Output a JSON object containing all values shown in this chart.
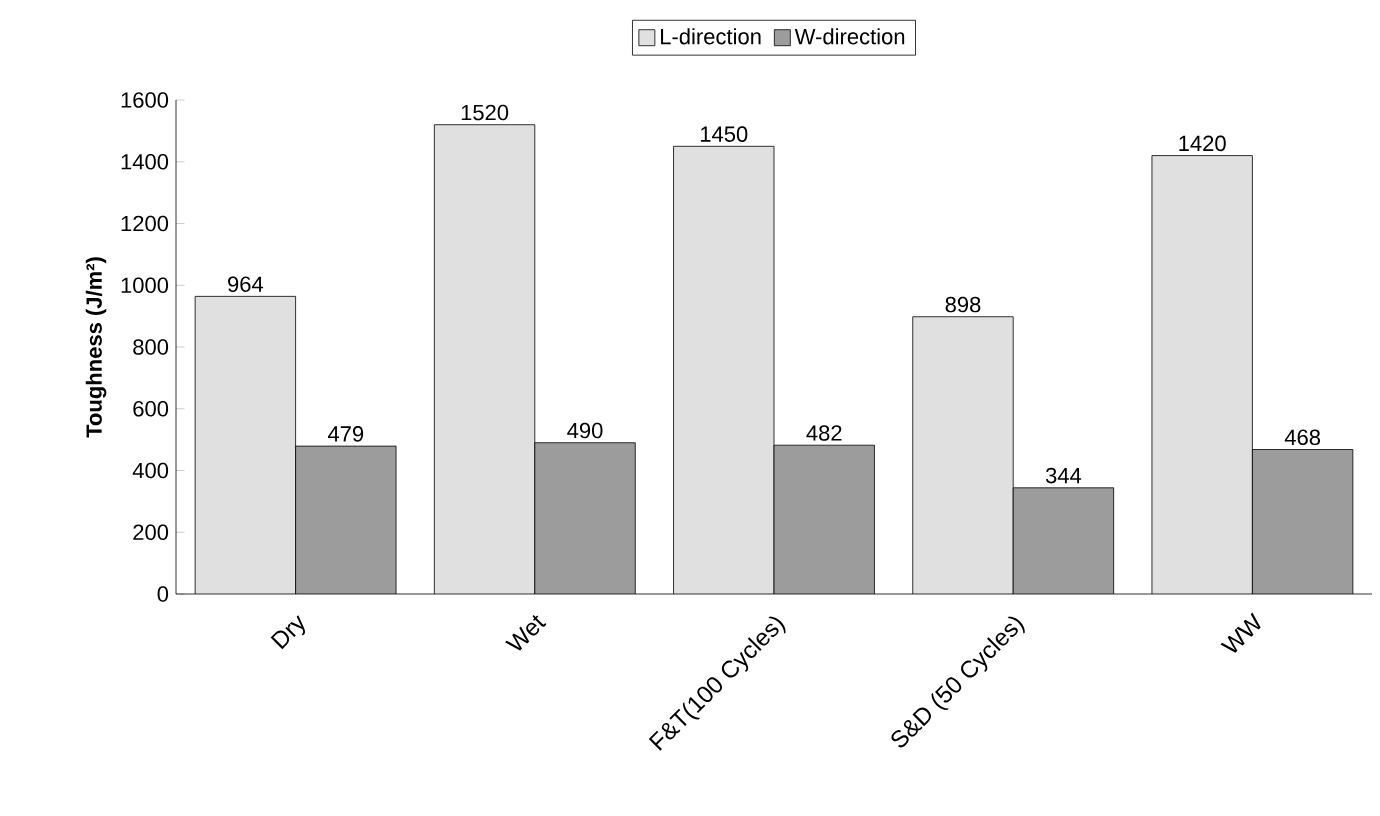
{
  "chart_data": {
    "type": "bar",
    "ylabel": "Toughness (J/m²)",
    "categories": [
      "Dry",
      "Wet",
      "F&T(100 Cycles)",
      "S&D (50 Cycles)",
      "WW"
    ],
    "series": [
      {
        "name": "L-direction",
        "color": "#e0e0e0",
        "values": [
          964,
          1520,
          1450,
          898,
          1420
        ]
      },
      {
        "name": "W-direction",
        "color": "#9c9c9c",
        "values": [
          479,
          490,
          482,
          344,
          468
        ]
      }
    ],
    "ylim": [
      0,
      1600
    ],
    "yticks": [
      0,
      200,
      400,
      600,
      800,
      1000,
      1200,
      1400,
      1600
    ],
    "data_labels": true,
    "legend": "top",
    "grid": false
  }
}
